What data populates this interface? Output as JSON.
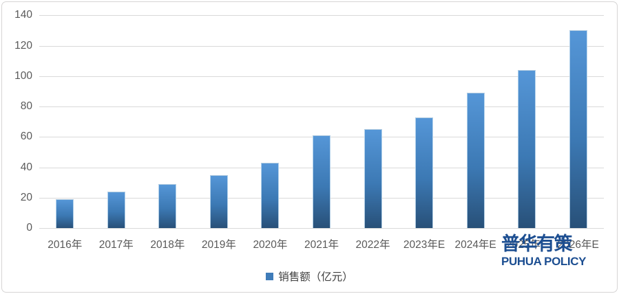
{
  "chart_data": {
    "type": "bar",
    "title": "",
    "xlabel": "",
    "ylabel": "",
    "categories": [
      "2016年",
      "2017年",
      "2018年",
      "2019年",
      "2020年",
      "2021年",
      "2022年",
      "2023年E",
      "2024年E",
      "2025年E",
      "2026年E"
    ],
    "series": [
      {
        "name": "销售额（亿元）",
        "values": [
          19,
          24,
          29,
          35,
          43,
          61,
          65,
          73,
          89,
          104,
          130
        ]
      }
    ],
    "ylim": [
      0,
      140
    ],
    "ytick_step": 20,
    "ytick_labels": [
      "0",
      "20",
      "40",
      "60",
      "80",
      "100",
      "120",
      "140"
    ],
    "grid": "horizontal",
    "legend_position": "bottom-center"
  },
  "legend": {
    "label": "销售额（亿元）",
    "marker_color": "#3F7CB9"
  },
  "watermark": {
    "cn": "普华有策",
    "en": "PUHUA POLICY",
    "color": "#1C4E91"
  },
  "colors": {
    "bar_top": "#5596D7",
    "bar_bottom": "#285078",
    "gridline": "#D9D9D9",
    "tick_text": "#595959",
    "frame_border": "#D6D4D4"
  }
}
